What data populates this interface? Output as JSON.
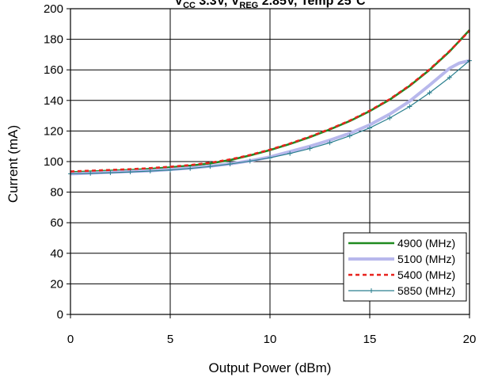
{
  "chart_data": {
    "type": "line",
    "title_parts": {
      "v_cc": "V",
      "v_cc_sub": "CC",
      "mid": " 3.3V, V",
      "v_reg_sub": "REG",
      "rest": " 2.85V, Temp 25°C"
    },
    "xlabel": "Output Power (dBm)",
    "ylabel": "Current (mA)",
    "xlim": [
      0,
      20
    ],
    "ylim": [
      0,
      200
    ],
    "xticks": [
      0,
      5,
      10,
      15,
      20
    ],
    "yticks": [
      0,
      20,
      40,
      60,
      80,
      100,
      120,
      140,
      160,
      180,
      200
    ],
    "grid": true,
    "legend_position": "bottom-right",
    "series": [
      {
        "name": "4900 (MHz)",
        "color": "#1f8a1f",
        "style": "solid",
        "x": [
          0,
          1,
          2,
          3,
          4,
          5,
          6,
          7,
          8,
          9,
          10,
          11,
          12,
          13,
          14,
          15,
          16,
          17,
          18,
          19,
          20
        ],
        "y": [
          93,
          93.5,
          94,
          94.5,
          95.2,
          96.2,
          97.3,
          98.8,
          101,
          104,
          107.5,
          111.5,
          116,
          121,
          126.5,
          133,
          140.5,
          149.5,
          160,
          172,
          186
        ]
      },
      {
        "name": "5100 (MHz)",
        "color": "#b8b8ec",
        "style": "thick",
        "x": [
          0,
          1,
          2,
          3,
          4,
          5,
          6,
          7,
          8,
          9,
          10,
          11,
          12,
          13,
          14,
          15,
          16,
          17,
          18,
          19,
          19.5,
          20
        ],
        "y": [
          92,
          92.5,
          93,
          93.5,
          94,
          94.8,
          95.8,
          97,
          98.5,
          100.5,
          103,
          106.5,
          110,
          114,
          118.5,
          124,
          131,
          139.5,
          150,
          161,
          164.5,
          166
        ]
      },
      {
        "name": "5400 (MHz)",
        "color": "#e8231e",
        "style": "dashed",
        "x": [
          0,
          1,
          2,
          3,
          4,
          5,
          6,
          7,
          8,
          9,
          10,
          11,
          12,
          13,
          14,
          15,
          16,
          17,
          18,
          19,
          20
        ],
        "y": [
          93.5,
          94,
          94.5,
          95,
          95.7,
          96.6,
          97.7,
          99.2,
          101.4,
          104.3,
          107.8,
          111.8,
          116.3,
          121.3,
          126.8,
          133.3,
          140.8,
          149.8,
          160.3,
          172.3,
          185.5
        ]
      },
      {
        "name": "5850 (MHz)",
        "color": "#2a7f8f",
        "style": "marker",
        "x": [
          0,
          1,
          2,
          3,
          4,
          5,
          6,
          7,
          8,
          9,
          10,
          11,
          12,
          13,
          14,
          15,
          16,
          17,
          18,
          19,
          20
        ],
        "y": [
          92,
          92.3,
          92.7,
          93.2,
          93.8,
          94.5,
          95.5,
          96.8,
          98.4,
          100.3,
          102.5,
          105.3,
          108.5,
          112.3,
          116.8,
          122,
          128.5,
          136,
          145,
          155,
          166
        ]
      }
    ]
  }
}
